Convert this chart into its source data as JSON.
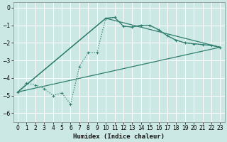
{
  "xlabel": "Humidex (Indice chaleur)",
  "bg_color": "#cce8e4",
  "grid_color": "#ffffff",
  "line_color": "#2e7d6e",
  "xlim": [
    -0.5,
    23.5
  ],
  "ylim": [
    -6.5,
    0.3
  ],
  "xticks": [
    0,
    1,
    2,
    3,
    4,
    5,
    6,
    7,
    8,
    9,
    10,
    11,
    12,
    13,
    14,
    15,
    16,
    17,
    18,
    19,
    20,
    21,
    22,
    23
  ],
  "yticks": [
    0,
    -1,
    -2,
    -3,
    -4,
    -5,
    -6
  ],
  "dotted_series": {
    "x": [
      0,
      1,
      2,
      3,
      4,
      5,
      6,
      7,
      8,
      9,
      10,
      11,
      12,
      13,
      14,
      15,
      16,
      17,
      18,
      19,
      20,
      21,
      22,
      23
    ],
    "y": [
      -4.8,
      -4.3,
      -4.4,
      -4.6,
      -5.0,
      -4.85,
      -5.5,
      -3.35,
      -2.55,
      -2.55,
      -0.6,
      -0.55,
      -1.05,
      -1.1,
      -1.0,
      -1.0,
      -1.25,
      -1.6,
      -1.85,
      -2.0,
      -2.05,
      -2.1,
      -2.15,
      -2.25
    ]
  },
  "solid_lines": [
    {
      "x": [
        0,
        10,
        11,
        12,
        13,
        14,
        15,
        16,
        17,
        18,
        19,
        20,
        21,
        22,
        23
      ],
      "y": [
        -4.8,
        -0.6,
        -0.55,
        -1.05,
        -1.1,
        -1.0,
        -1.0,
        -1.25,
        -1.6,
        -1.85,
        -2.0,
        -2.05,
        -2.1,
        -2.15,
        -2.25
      ]
    },
    {
      "x": [
        0,
        10,
        23
      ],
      "y": [
        -4.8,
        -0.6,
        -2.25
      ]
    },
    {
      "x": [
        0,
        23
      ],
      "y": [
        -4.8,
        -2.25
      ]
    }
  ]
}
